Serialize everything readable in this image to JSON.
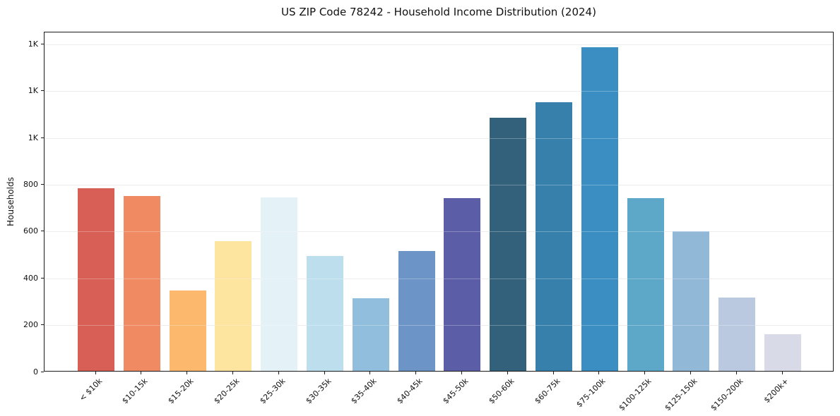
{
  "chart_data": {
    "type": "bar",
    "title": "US ZIP Code 78242 - Household Income Distribution (2024)",
    "xlabel": "",
    "ylabel": "Households",
    "categories": [
      "< $10k",
      "$10-15k",
      "$15-20k",
      "$20-25k",
      "$25-30k",
      "$30-35k",
      "$35-40k",
      "$40-45k",
      "$45-50k",
      "$50-60k",
      "$60-75k",
      "$75-100k",
      "$100-125k",
      "$125-150k",
      "$150-200k",
      "$200k+"
    ],
    "values": [
      780,
      748,
      344,
      555,
      742,
      490,
      311,
      513,
      737,
      1080,
      1148,
      1382,
      737,
      597,
      314,
      157
    ],
    "bar_colors": [
      "#d85f55",
      "#f08a62",
      "#fcb96e",
      "#fde5a0",
      "#e4f1f7",
      "#bcdeed",
      "#90bedc",
      "#6c94c6",
      "#5b5ea7",
      "#33607a",
      "#3780ab",
      "#3a8ec2",
      "#5da7c9",
      "#92b8d8",
      "#bac9e0",
      "#d9dae7"
    ],
    "ylim": [
      0,
      1452
    ],
    "yticks": [
      {
        "value": 0,
        "label": "0"
      },
      {
        "value": 200,
        "label": "200"
      },
      {
        "value": 400,
        "label": "400"
      },
      {
        "value": 600,
        "label": "600"
      },
      {
        "value": 800,
        "label": "800"
      },
      {
        "value": 1000,
        "label": "1K"
      },
      {
        "value": 1200,
        "label": "1K"
      },
      {
        "value": 1400,
        "label": "1K"
      }
    ],
    "grid": "horizontal",
    "legend": "none",
    "colors": {
      "background": "#ffffff",
      "spine": "#1a1a1a",
      "gridline": "#e6e6e6",
      "text": "#111111"
    }
  }
}
